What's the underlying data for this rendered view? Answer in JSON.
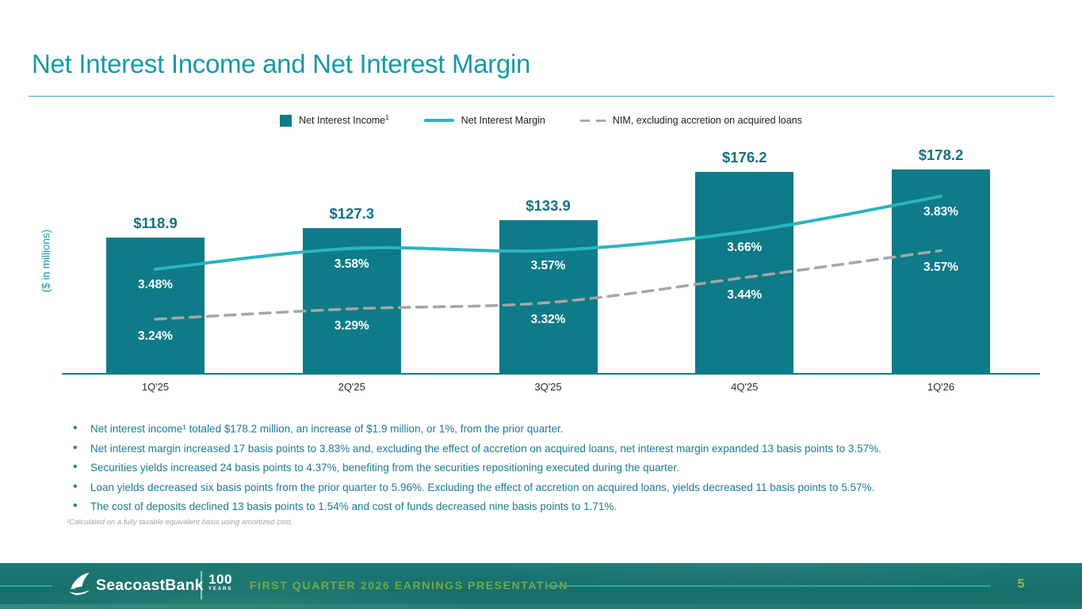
{
  "slide": {
    "title": "Net Interest Income and Net Interest Margin",
    "footnote": "¹Calculated on a fully taxable equivalent basis using amortized cost.",
    "bullets": [
      "Net interest income¹ totaled $178.2 million, an increase of $1.9 million, or 1%, from the prior quarter.",
      "Net interest margin increased 17 basis points to 3.83% and, excluding the effect of accretion on acquired loans, net interest margin expanded 13 basis points to 3.57%.",
      "Securities yields increased 24 basis points to 4.37%, benefiting from the securities repositioning executed during the quarter.",
      "Loan yields decreased six basis points from the prior quarter to 5.96%. Excluding the effect of accretion on acquired loans, yields decreased 11 basis points to 5.57%.",
      "The cost of deposits declined 13 basis points to 1.54% and cost of funds decreased nine basis points to 1.71%."
    ]
  },
  "chart_data": {
    "type": "bar",
    "title": "Net Interest Income and Net Interest Margin",
    "categories": [
      "1Q'25",
      "2Q'25",
      "3Q'25",
      "4Q'25",
      "1Q'26"
    ],
    "ylabel": "($ in millions)",
    "legend_position": "top",
    "grid": false,
    "left_axis_range": [
      0,
      208
    ],
    "right_axis_unit": "%",
    "series": [
      {
        "name": "Net Interest Income",
        "sup": "1",
        "type": "bar",
        "axis": "left",
        "unit": "$ in millions",
        "values": [
          118.9,
          127.3,
          133.9,
          176.2,
          178.2
        ],
        "labels": [
          "$118.9",
          "$127.3",
          "$133.9",
          "$176.2",
          "$178.2"
        ],
        "color": "#0E7B88"
      },
      {
        "name": "Net Interest Margin",
        "type": "line",
        "style": "solid",
        "axis": "right",
        "unit": "%",
        "values": [
          3.48,
          3.58,
          3.57,
          3.66,
          3.83
        ],
        "labels": [
          "3.48%",
          "3.58%",
          "3.57%",
          "3.66%",
          "3.83%"
        ],
        "color": "#29B5BF"
      },
      {
        "name": "NIM, excluding accretion on acquired loans",
        "type": "line",
        "style": "dashed",
        "axis": "right",
        "unit": "%",
        "values": [
          3.24,
          3.29,
          3.32,
          3.44,
          3.57
        ],
        "labels": [
          "3.24%",
          "3.29%",
          "3.32%",
          "3.44%",
          "3.57%"
        ],
        "color": "#A6A6A6"
      }
    ]
  },
  "footer": {
    "brand": "SeacoastBank",
    "badge_number": "100",
    "badge_caption": "YEARS",
    "presentation_title": "FIRST QUARTER 2026 EARNINGS PRESENTATION",
    "page_number": "5"
  },
  "colors": {
    "accent_teal": "#1898AA",
    "bar_fill": "#0E7B88",
    "nim_line": "#29B5BF",
    "nim_ex_line": "#A6A6A6",
    "bar_value_text": "#166F82",
    "bullet_text": "#1A7A96",
    "footer_background": "#1B7370",
    "footer_green_text": "#7EB13F",
    "page_number_green": "#8CC53F"
  }
}
